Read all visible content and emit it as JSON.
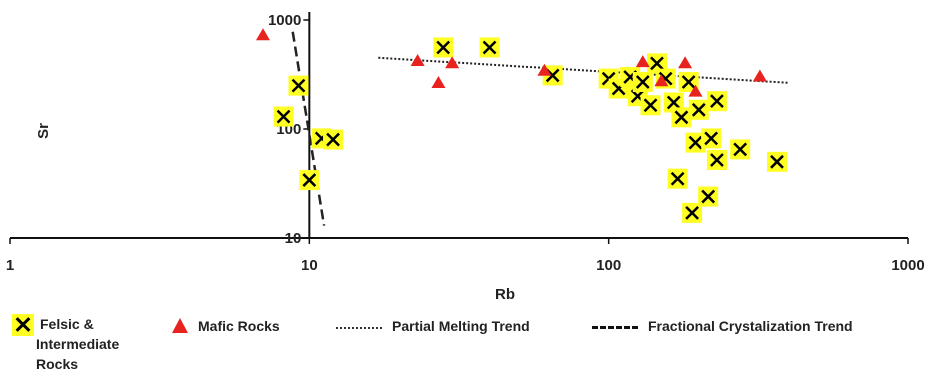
{
  "chart_data": {
    "type": "scatter",
    "xscale": "log",
    "yscale": "log",
    "xlim": [
      1,
      1000
    ],
    "ylim": [
      10,
      1000
    ],
    "xlabel": "Rb",
    "ylabel": "Sr",
    "x_ticks": [
      "1",
      "10",
      "100",
      "1000"
    ],
    "y_ticks": [
      "10",
      "100",
      "1000"
    ],
    "legend_placement": "bottom",
    "series": [
      {
        "name": "Felsic & Intermediate Rocks",
        "marker": "yellow-box-x",
        "color": "#ffff22",
        "points": [
          [
            28,
            560
          ],
          [
            40,
            560
          ],
          [
            65,
            310
          ],
          [
            9.2,
            250
          ],
          [
            8.2,
            130
          ],
          [
            11,
            82
          ],
          [
            12,
            80
          ],
          [
            10,
            34
          ],
          [
            100,
            290
          ],
          [
            108,
            235
          ],
          [
            118,
            300
          ],
          [
            125,
            200
          ],
          [
            130,
            270
          ],
          [
            138,
            165
          ],
          [
            145,
            400
          ],
          [
            155,
            290
          ],
          [
            165,
            175
          ],
          [
            175,
            128
          ],
          [
            185,
            270
          ],
          [
            195,
            75
          ],
          [
            200,
            150
          ],
          [
            215,
            24
          ],
          [
            220,
            82
          ],
          [
            230,
            52
          ],
          [
            230,
            180
          ],
          [
            190,
            17
          ],
          [
            170,
            35
          ],
          [
            275,
            65
          ],
          [
            365,
            50
          ]
        ]
      },
      {
        "name": "Mafic Rocks",
        "marker": "red-triangle",
        "color": "#e8231f",
        "points": [
          [
            7,
            740
          ],
          [
            23,
            430
          ],
          [
            27,
            270
          ],
          [
            30,
            410
          ],
          [
            61,
            350
          ],
          [
            130,
            420
          ],
          [
            150,
            280
          ],
          [
            180,
            410
          ],
          [
            195,
            225
          ],
          [
            320,
            310
          ]
        ]
      }
    ],
    "trend_lines": [
      {
        "name": "Partial Melting Trend",
        "style": "dotted",
        "points": [
          [
            17,
            450
          ],
          [
            400,
            265
          ]
        ]
      },
      {
        "name": "Fractional Crystalization Trend",
        "style": "dashed",
        "points": [
          [
            8.8,
            780
          ],
          [
            11.2,
            13
          ]
        ]
      }
    ]
  },
  "legend": {
    "felsic_line1": "Felsic &",
    "felsic_line2": "Intermediate",
    "felsic_line3": "Rocks",
    "mafic": "Mafic Rocks",
    "partial": "Partial Melting Trend",
    "fractional": "Fractional Crystalization Trend"
  }
}
